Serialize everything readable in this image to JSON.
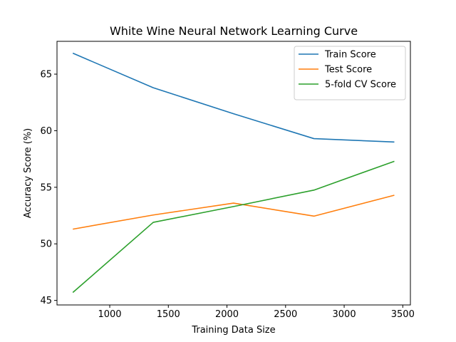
{
  "chart_data": {
    "type": "line",
    "title": "White Wine Neural Network Learning Curve",
    "xlabel": "Training Data Size",
    "ylabel": "Accuracy Score (%)",
    "x": [
      685,
      1371,
      2056,
      2742,
      3428
    ],
    "xlim": [
      550,
      3565
    ],
    "ylim": [
      44.6,
      67.9
    ],
    "xticks": [
      1000,
      1500,
      2000,
      2500,
      3000,
      3500
    ],
    "yticks": [
      45,
      50,
      55,
      60,
      65
    ],
    "grid": false,
    "legend_position": "top-right",
    "series": [
      {
        "name": "Train Score",
        "color": "#1f77b4",
        "values": [
          66.85,
          63.8,
          61.5,
          59.3,
          59.0
        ]
      },
      {
        "name": "Test Score",
        "color": "#ff7f0e",
        "values": [
          51.3,
          52.55,
          53.6,
          52.45,
          54.3
        ]
      },
      {
        "name": "5-fold CV Score",
        "color": "#2ca02c",
        "values": [
          45.7,
          51.9,
          53.3,
          54.75,
          57.3
        ]
      }
    ]
  }
}
